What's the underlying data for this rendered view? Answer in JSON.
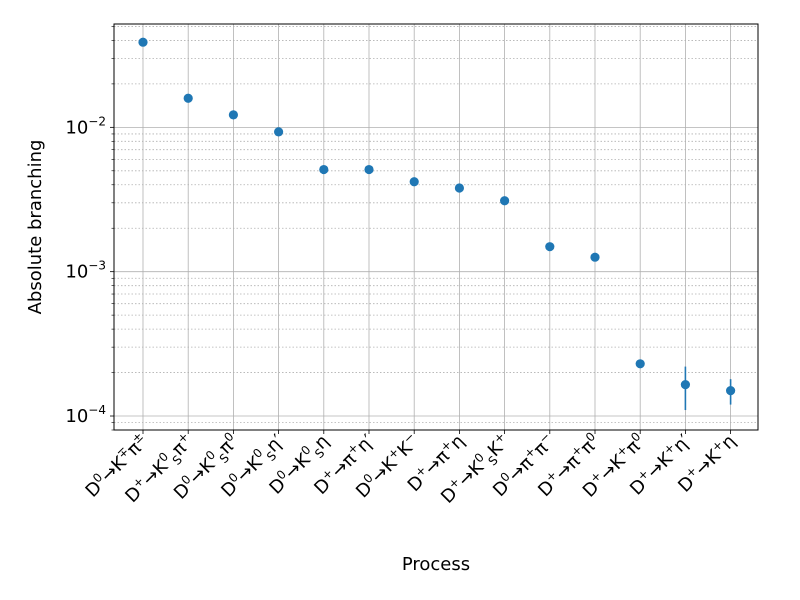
{
  "chart_data": {
    "type": "scatter",
    "xlabel": "Process",
    "ylabel": "Absolute branching",
    "y_scale": "log",
    "ylim": [
      8e-05,
      0.052
    ],
    "grid": "on (major and minor, y log)",
    "series_color": "#1f77b4",
    "grid_color": "#b0b0b0",
    "categories": [
      "D0→K∓π±",
      "D+→K0Sπ+",
      "D0→K0Sπ0",
      "D0→K0Sη′",
      "D0→K0Sη",
      "D+→π+η′",
      "D0→K+K−",
      "D+→π+η",
      "D+→K0SK+",
      "D0→π+π−",
      "D+→π+π0",
      "D+→K+π0",
      "D+→K+η′",
      "D+→K+η"
    ],
    "tick_labels_rich": [
      [
        [
          "D",
          ""
        ],
        [
          "0",
          "sup"
        ],
        [
          "→K",
          ""
        ],
        [
          "∓",
          "sup"
        ],
        [
          "π",
          ""
        ],
        [
          "±",
          "sup"
        ]
      ],
      [
        [
          "D",
          ""
        ],
        [
          "+",
          "sup"
        ],
        [
          "→K",
          ""
        ],
        [
          "0",
          "sup"
        ],
        [
          "S",
          "sub"
        ],
        [
          "π",
          ""
        ],
        [
          "+",
          "sup"
        ]
      ],
      [
        [
          "D",
          ""
        ],
        [
          "0",
          "sup"
        ],
        [
          "→K",
          ""
        ],
        [
          "0",
          "sup"
        ],
        [
          "S",
          "sub"
        ],
        [
          "π",
          ""
        ],
        [
          "0",
          "sup"
        ]
      ],
      [
        [
          "D",
          ""
        ],
        [
          "0",
          "sup"
        ],
        [
          "→K",
          ""
        ],
        [
          "0",
          "sup"
        ],
        [
          "S",
          "sub"
        ],
        [
          "η′",
          ""
        ]
      ],
      [
        [
          "D",
          ""
        ],
        [
          "0",
          "sup"
        ],
        [
          "→K",
          ""
        ],
        [
          "0",
          "sup"
        ],
        [
          "S",
          "sub"
        ],
        [
          "η",
          ""
        ]
      ],
      [
        [
          "D",
          ""
        ],
        [
          "+",
          "sup"
        ],
        [
          "→π",
          ""
        ],
        [
          "+",
          "sup"
        ],
        [
          "η′",
          ""
        ]
      ],
      [
        [
          "D",
          ""
        ],
        [
          "0",
          "sup"
        ],
        [
          "→K",
          ""
        ],
        [
          "+",
          "sup"
        ],
        [
          "K",
          ""
        ],
        [
          "−",
          "sup"
        ]
      ],
      [
        [
          "D",
          ""
        ],
        [
          "+",
          "sup"
        ],
        [
          "→π",
          ""
        ],
        [
          "+",
          "sup"
        ],
        [
          "η",
          ""
        ]
      ],
      [
        [
          "D",
          ""
        ],
        [
          "+",
          "sup"
        ],
        [
          "→K",
          ""
        ],
        [
          "0",
          "sup"
        ],
        [
          "S",
          "sub"
        ],
        [
          "K",
          ""
        ],
        [
          "+",
          "sup"
        ]
      ],
      [
        [
          "D",
          ""
        ],
        [
          "0",
          "sup"
        ],
        [
          "→π",
          ""
        ],
        [
          "+",
          "sup"
        ],
        [
          "π",
          ""
        ],
        [
          "−",
          "sup"
        ]
      ],
      [
        [
          "D",
          ""
        ],
        [
          "+",
          "sup"
        ],
        [
          "→π",
          ""
        ],
        [
          "+",
          "sup"
        ],
        [
          "π",
          ""
        ],
        [
          "0",
          "sup"
        ]
      ],
      [
        [
          "D",
          ""
        ],
        [
          "+",
          "sup"
        ],
        [
          "→K",
          ""
        ],
        [
          "+",
          "sup"
        ],
        [
          "π",
          ""
        ],
        [
          "0",
          "sup"
        ]
      ],
      [
        [
          "D",
          ""
        ],
        [
          "+",
          "sup"
        ],
        [
          "→K",
          ""
        ],
        [
          "+",
          "sup"
        ],
        [
          "η′",
          ""
        ]
      ],
      [
        [
          "D",
          ""
        ],
        [
          "+",
          "sup"
        ],
        [
          "→K",
          ""
        ],
        [
          "+",
          "sup"
        ],
        [
          "η",
          ""
        ]
      ]
    ],
    "values": [
      0.0389,
      0.0159,
      0.0122,
      0.0093,
      0.0051,
      0.0051,
      0.0042,
      0.0038,
      0.0031,
      0.00149,
      0.00126,
      0.00023,
      0.000165,
      0.00015
    ],
    "errors": [
      0.0004,
      0.0002,
      0.0002,
      0.0003,
      0.0001,
      0.00015,
      8e-05,
      8e-05,
      6e-05,
      3e-05,
      4e-05,
      1.5e-05,
      5.5e-05,
      3e-05
    ],
    "y_ticks": [
      {
        "value": 0.0001,
        "base": "10",
        "exp": "−4"
      },
      {
        "value": 0.001,
        "base": "10",
        "exp": "−3"
      },
      {
        "value": 0.01,
        "base": "10",
        "exp": "−2"
      }
    ]
  }
}
